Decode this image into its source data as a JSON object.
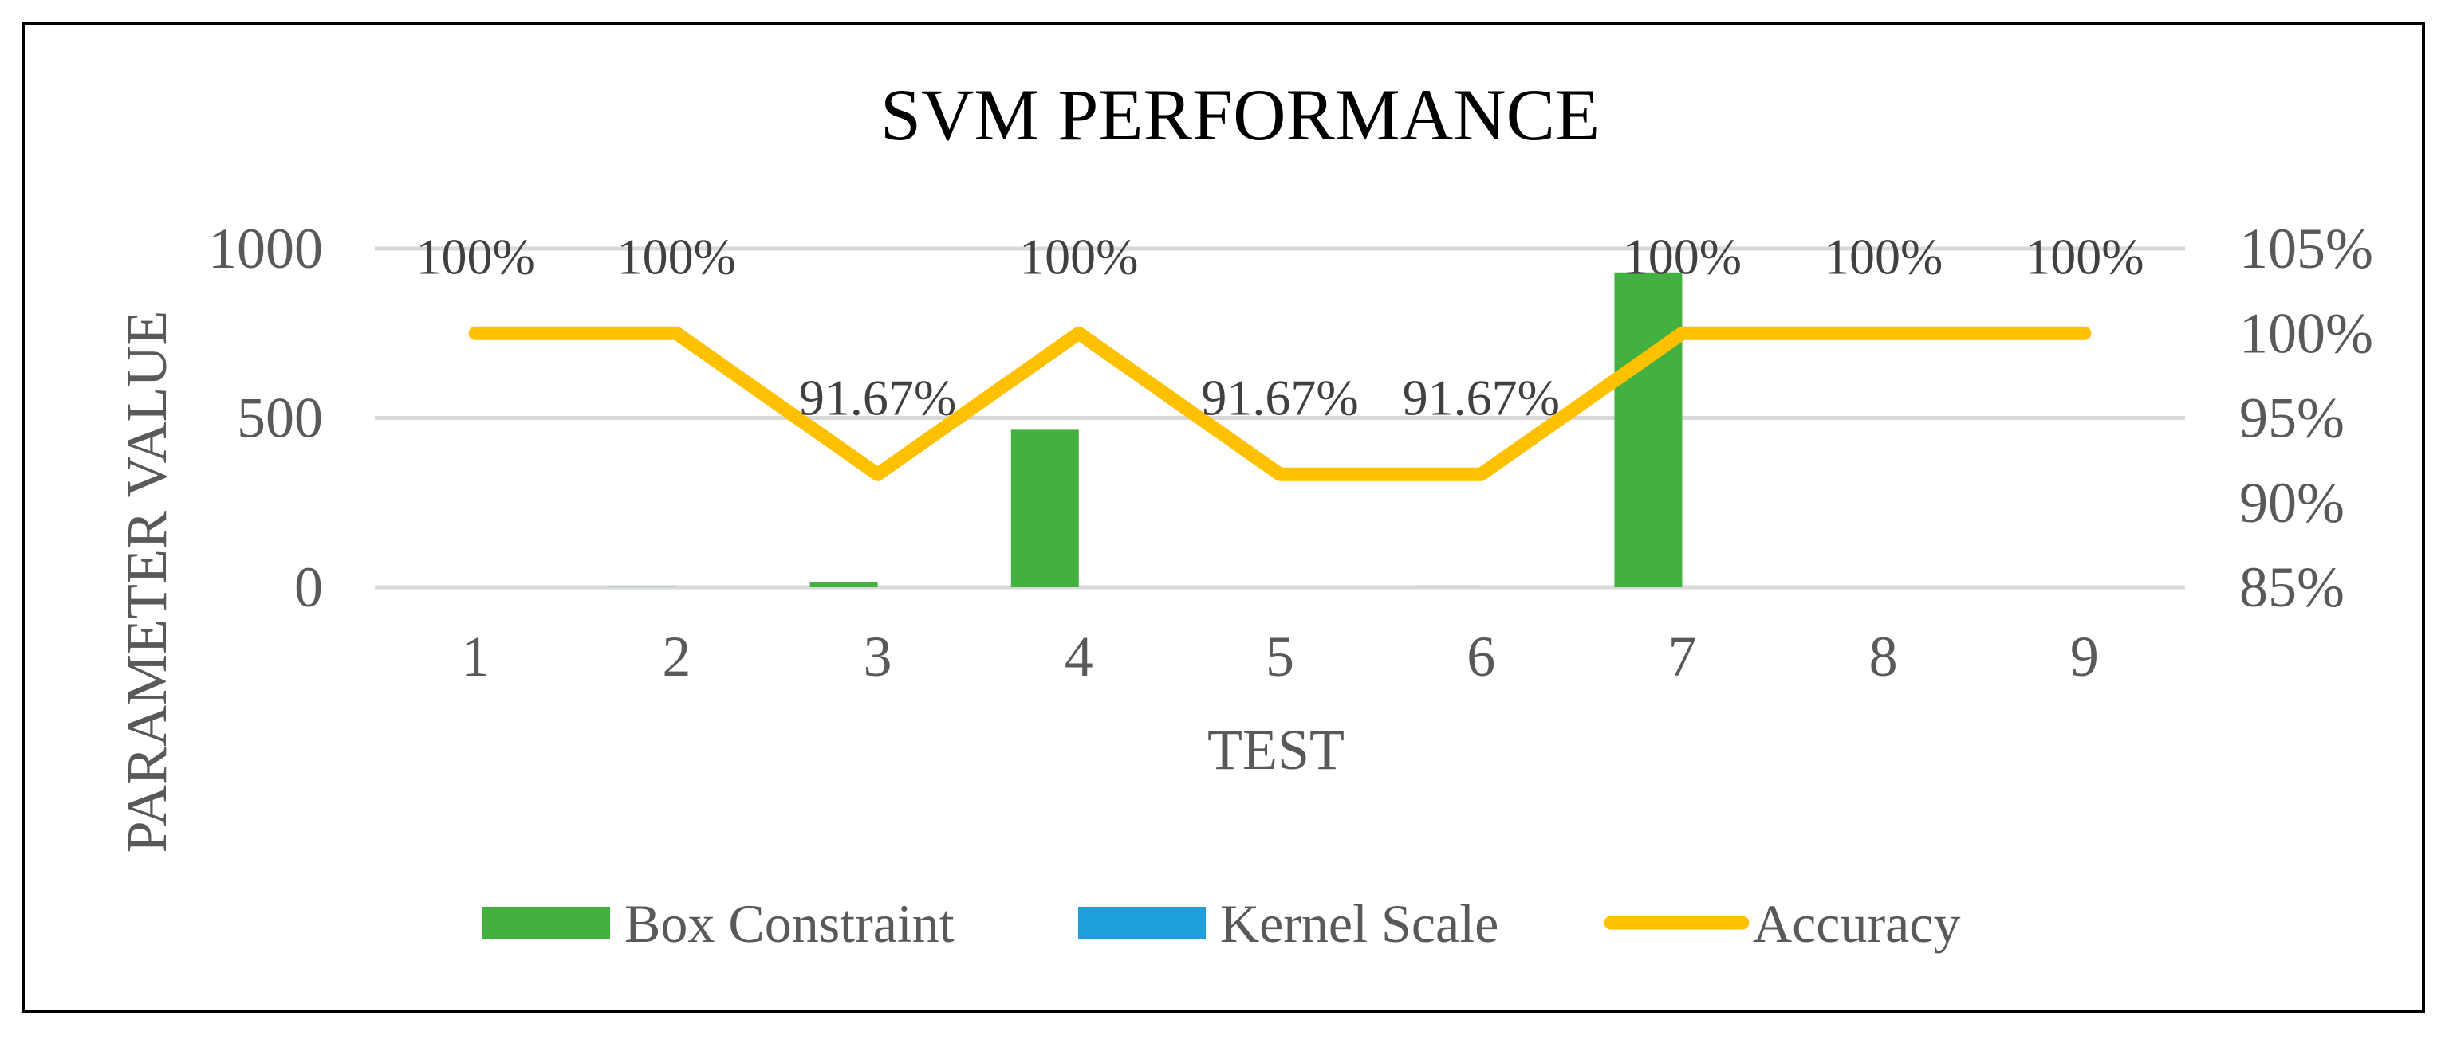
{
  "chart_data": {
    "type": "bar",
    "title": "SVM PERFORMANCE",
    "xlabel": "TEST",
    "ylabel": "PARAMETER VALUE",
    "categories": [
      "1",
      "2",
      "3",
      "4",
      "5",
      "6",
      "7",
      "8",
      "9"
    ],
    "ylim": [
      0,
      1000
    ],
    "y_ticks": [
      "0",
      "500",
      "1000"
    ],
    "y_tick_values": [
      0,
      500,
      1000
    ],
    "y2lim": [
      0.85,
      1.05
    ],
    "y2_ticks": [
      "85%",
      "90%",
      "95%",
      "100%",
      "105%"
    ],
    "y2_tick_values": [
      0.85,
      0.9,
      0.95,
      1.0,
      1.05
    ],
    "grid": true,
    "legend_position": "bottom",
    "series": [
      {
        "name": "Box Constraint",
        "kind": "bar",
        "axis": "left",
        "color": "#43B13F",
        "values": [
          0.1,
          0.5,
          15,
          465,
          0.1,
          0.3,
          930,
          0.1,
          0.1
        ]
      },
      {
        "name": "Kernel Scale",
        "kind": "bar",
        "axis": "left",
        "color": "#1F9FDB",
        "values": [
          0.01,
          0.01,
          0.01,
          0.01,
          0.01,
          0.01,
          0.01,
          0.01,
          0.01
        ]
      },
      {
        "name": "Accuracy",
        "kind": "line",
        "axis": "right",
        "color": "#FFC000",
        "values": [
          1.0,
          1.0,
          0.9167,
          1.0,
          0.9167,
          0.9167,
          1.0,
          1.0,
          1.0
        ],
        "labels": [
          "100%",
          "100%",
          "91.67%",
          "100%",
          "91.67%",
          "91.67%",
          "100%",
          "100%",
          "100%"
        ]
      }
    ]
  }
}
